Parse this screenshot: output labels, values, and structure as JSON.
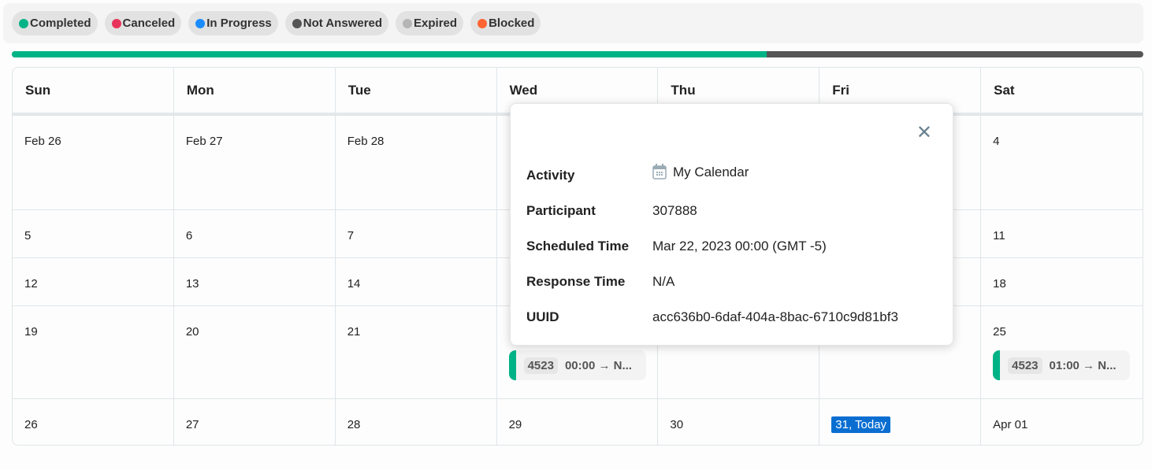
{
  "legend": [
    {
      "label": "Completed",
      "color": "#00b386"
    },
    {
      "label": "Canceled",
      "color": "#e8335a"
    },
    {
      "label": "In Progress",
      "color": "#1a8cff"
    },
    {
      "label": "Not Answered",
      "color": "#555555"
    },
    {
      "label": "Expired",
      "color": "#b5b5b5"
    },
    {
      "label": "Blocked",
      "color": "#ff6633"
    }
  ],
  "progress": {
    "completed_fraction": 0.667,
    "completed_color": "#00b386",
    "remaining_color": "#555555"
  },
  "calendar": {
    "days": [
      "Sun",
      "Mon",
      "Tue",
      "Wed",
      "Thu",
      "Fri",
      "Sat"
    ],
    "weeks": [
      [
        "Feb 26",
        "Feb 27",
        "Feb 28",
        "",
        "",
        "",
        "4"
      ],
      [
        "5",
        "6",
        "7",
        "",
        "",
        "",
        "11"
      ],
      [
        "12",
        "13",
        "14",
        "",
        "",
        "",
        "18"
      ],
      [
        "19",
        "20",
        "21",
        "",
        "",
        "",
        "25"
      ],
      [
        "26",
        "27",
        "28",
        "29",
        "30",
        "31, Today",
        "Apr 01"
      ]
    ],
    "events": [
      {
        "week": 3,
        "day": 3,
        "id": "4523",
        "time": "00:00 → N..."
      },
      {
        "week": 3,
        "day": 6,
        "id": "4523",
        "time": "01:00 → N..."
      }
    ]
  },
  "popover": {
    "rows": [
      {
        "label": "Activity",
        "value": "My Calendar",
        "icon": "calendar-icon"
      },
      {
        "label": "Participant",
        "value": "307888"
      },
      {
        "label": "Scheduled Time",
        "value": "Mar 22, 2023 00:00 (GMT -5)"
      },
      {
        "label": "Response Time",
        "value": "N/A"
      },
      {
        "label": "UUID",
        "value": "acc636b0-6daf-404a-8bac-6710c9d81bf3"
      }
    ]
  }
}
